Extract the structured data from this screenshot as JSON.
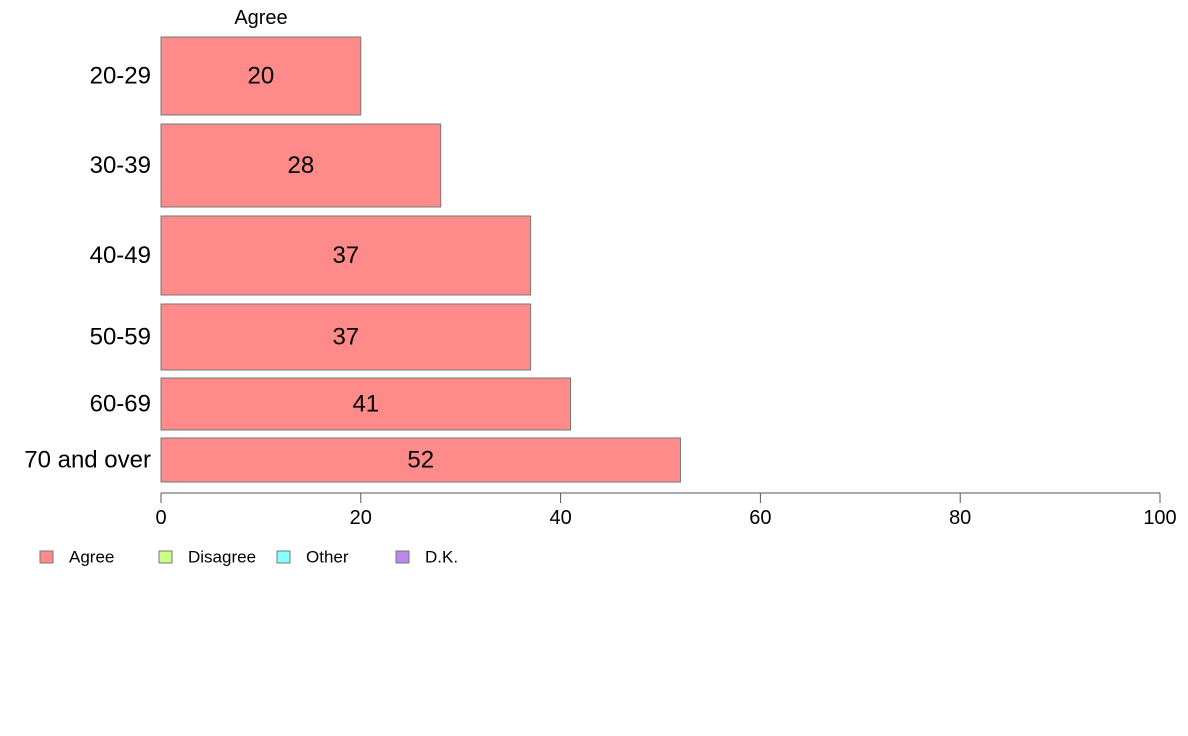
{
  "chart_data": {
    "type": "bar",
    "orientation": "horizontal",
    "top_label": "Agree",
    "categories": [
      "20-29",
      "30-39",
      "40-49",
      "50-59",
      "60-69",
      "70 and over"
    ],
    "series": [
      {
        "name": "Agree",
        "values": [
          20,
          28,
          37,
          37,
          41,
          52
        ],
        "color": "#ff8a8a"
      }
    ],
    "data_labels": [
      "20",
      "28",
      "37",
      "37",
      "41",
      "52"
    ],
    "xlim": [
      0,
      100
    ],
    "x_ticks": [
      0,
      20,
      40,
      60,
      80,
      100
    ],
    "legend": {
      "placement": "bottom-left",
      "items": [
        {
          "label": "Agree",
          "color": "#ff8a8a"
        },
        {
          "label": "Disagree",
          "color": "#ccff88"
        },
        {
          "label": "Other",
          "color": "#88ffff"
        },
        {
          "label": "D.K.",
          "color": "#bb88ee"
        }
      ]
    },
    "grid": false
  }
}
